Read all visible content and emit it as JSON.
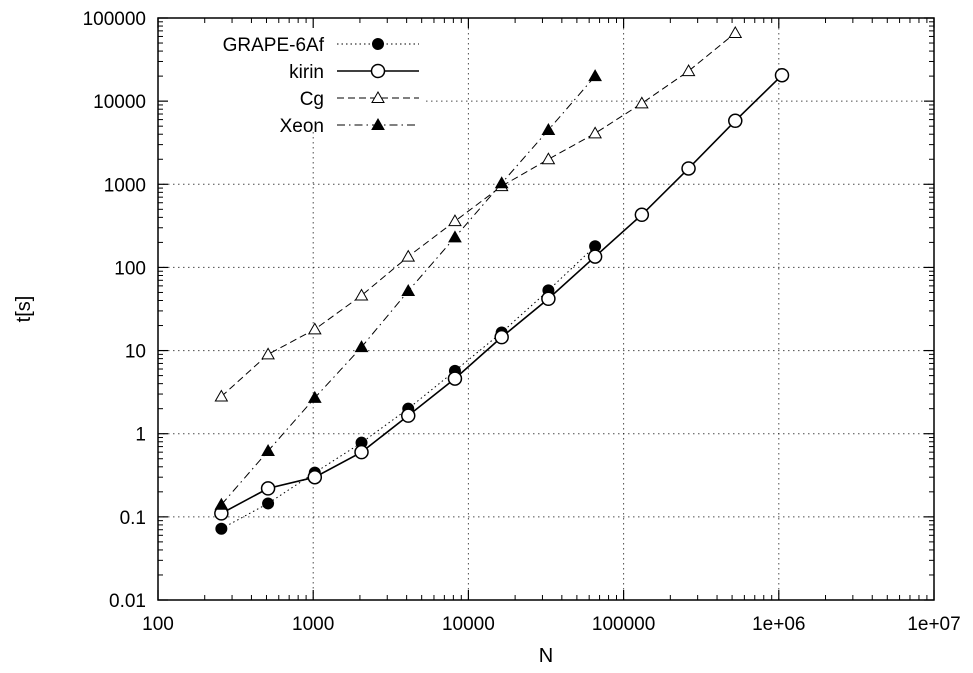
{
  "chart_data": {
    "type": "line",
    "xlabel": "N",
    "ylabel": "t[s]",
    "x_scale": "log",
    "y_scale": "log",
    "xlim": [
      100,
      10000000
    ],
    "ylim": [
      0.01,
      100000
    ],
    "grid": true,
    "legend_position": "top-left",
    "x_ticks": [
      "100",
      "1000",
      "10000",
      "100000",
      "1e+06",
      "1e+07"
    ],
    "y_ticks": [
      "0.01",
      "0.1",
      "1",
      "10",
      "100",
      "1000",
      "10000",
      "100000"
    ],
    "series": [
      {
        "name": "GRAPE-6Af",
        "marker": "filled-circle",
        "line": "dotted",
        "x": [
          256,
          512,
          1024,
          2048,
          4096,
          8192,
          16384,
          32768,
          65536
        ],
        "y": [
          0.072,
          0.145,
          0.34,
          0.78,
          2.0,
          5.7,
          16.5,
          53,
          180
        ]
      },
      {
        "name": "kirin",
        "marker": "open-circle",
        "line": "solid",
        "x": [
          256,
          512,
          1024,
          2048,
          4096,
          8192,
          16384,
          32768,
          65536,
          131072,
          262144,
          524288,
          1048576
        ],
        "y": [
          0.11,
          0.22,
          0.3,
          0.6,
          1.65,
          4.6,
          14.5,
          42,
          135,
          430,
          1550,
          5800,
          20500
        ]
      },
      {
        "name": "Cg",
        "marker": "open-triangle",
        "line": "dashed",
        "x": [
          256,
          512,
          1024,
          2048,
          4096,
          8192,
          16384,
          32768,
          65536,
          131072,
          262144,
          524288
        ],
        "y": [
          2.8,
          9,
          18,
          46,
          135,
          360,
          950,
          2000,
          4100,
          9400,
          23000,
          66000
        ]
      },
      {
        "name": "Xeon",
        "marker": "filled-triangle",
        "line": "dash-dot",
        "x": [
          256,
          512,
          1024,
          2048,
          4096,
          8192,
          16384,
          32768,
          65536
        ],
        "y": [
          0.14,
          0.62,
          2.7,
          11,
          52,
          230,
          1030,
          4500,
          20000
        ]
      }
    ]
  }
}
